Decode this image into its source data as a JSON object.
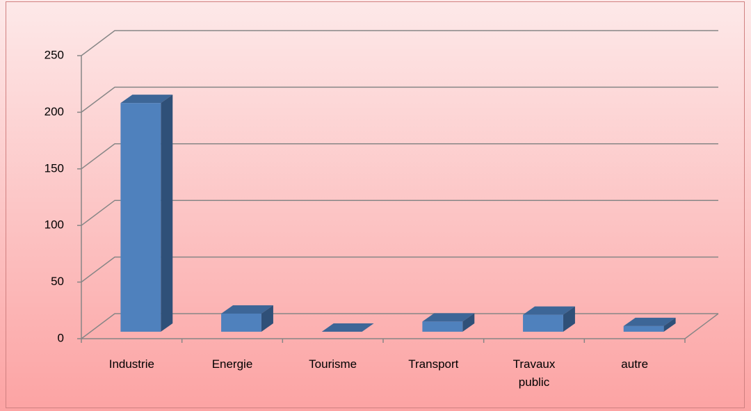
{
  "chart_data": {
    "type": "bar",
    "categories": [
      "Industrie",
      "Energie",
      "Tourisme",
      "Transport",
      "Travaux public",
      "autre"
    ],
    "values": [
      202,
      16,
      0,
      9,
      15,
      5
    ],
    "color": "#4f81bd",
    "ylim": [
      0,
      250
    ],
    "yticks": [
      0,
      50,
      100,
      150,
      200,
      250
    ],
    "grid": true
  }
}
